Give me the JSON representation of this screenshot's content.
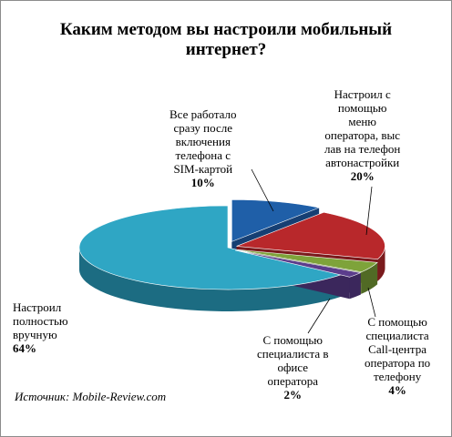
{
  "chart_data": {
    "type": "pie",
    "style": "3d-exploded",
    "title": "Каким методом вы настроили мобильный интернет?",
    "source": "Источник: Mobile-Review.com",
    "legend": "none",
    "slices": [
      {
        "label": "Все работало сразу после включения телефона с SIM-картой",
        "value": 10,
        "value_label": "10%",
        "color": "#1f5fa8",
        "side_color": "#163f73"
      },
      {
        "label": "Настроил с помощью меню оператора, выслав на телефон автонастройки",
        "value": 20,
        "value_label": "20%",
        "color": "#b8282b",
        "side_color": "#7a1a1c"
      },
      {
        "label": "С помощью специалиста Call-центра оператора по телефону",
        "value": 4,
        "value_label": "4%",
        "color": "#7ea33a",
        "side_color": "#516a25"
      },
      {
        "label": "С помощью специалиста в офисе оператора",
        "value": 2,
        "value_label": "2%",
        "color": "#5b3d8c",
        "side_color": "#3b275c"
      },
      {
        "label": "Настроил полностью вручную",
        "value": 64,
        "value_label": "64%",
        "color": "#2fa6c4",
        "side_color": "#1c6c82"
      }
    ]
  },
  "labels": {
    "s1": "Все работало\nсразу после\nвключения\nтелефона с\nSIM-картой",
    "s2": "Настроил с\nпомощью\nменю\nоператора, выс\nлав на телефон\nавтонастройки",
    "s3": "С помощью\nспециалиста\nCall-центра\nоператора по\nтелефону",
    "s4": "С помощью\nспециалиста в\nофисе\nоператора",
    "s5": "Настроил\nполностью\nвручную"
  }
}
